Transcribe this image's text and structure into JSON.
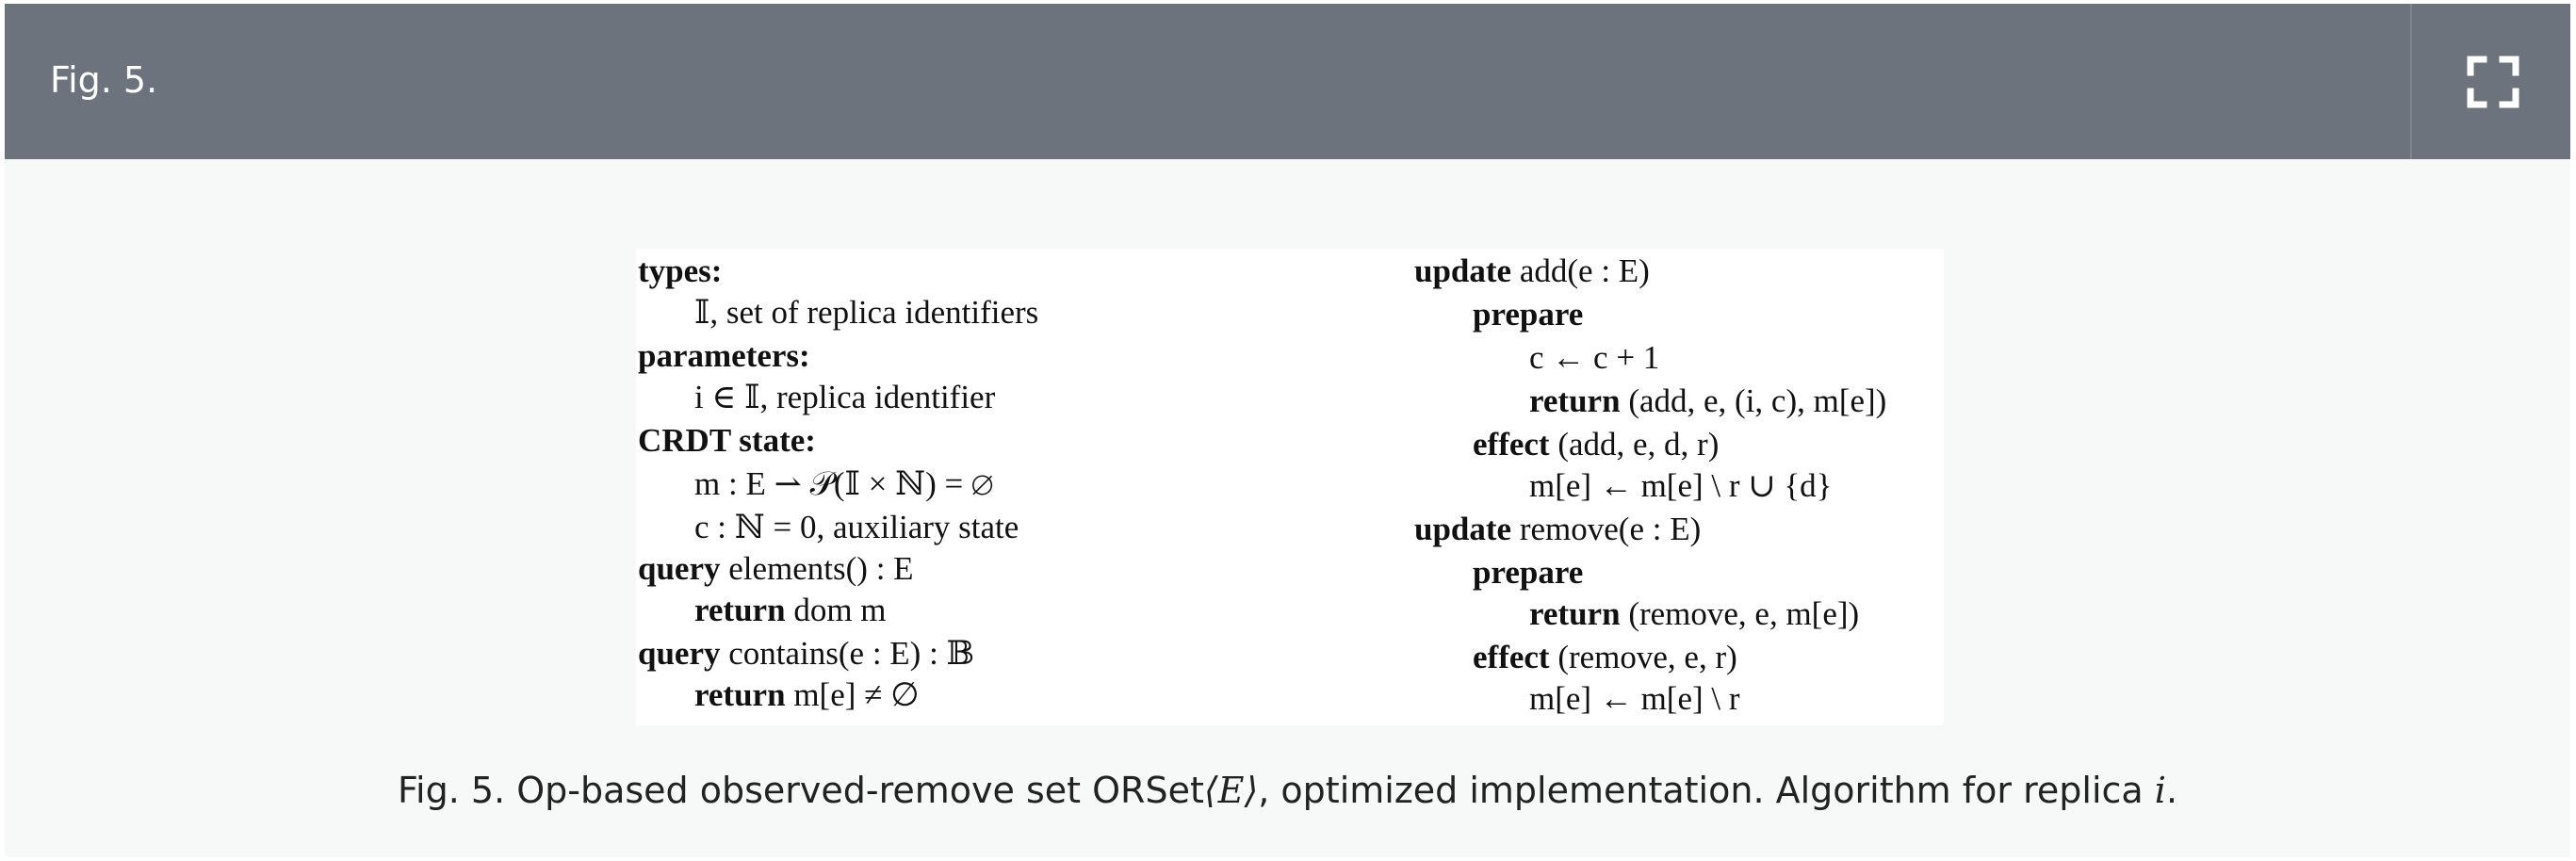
{
  "header": {
    "title": "Fig. 5.",
    "expand_icon": "fullscreen-icon"
  },
  "figure": {
    "algorithm": {
      "left_column": {
        "types_kw": "types:",
        "types_line": "𝕀, set of replica identifiers",
        "parameters_kw": "parameters:",
        "parameters_line": "i ∈ 𝕀, replica identifier",
        "state_kw": "CRDT state:",
        "state_m": "m : E ⇀ 𝒫(𝕀 × ℕ) = ∅",
        "state_c": "c : ℕ = 0, auxiliary state",
        "query1_kw": "query",
        "query1_sig": "elements() : E",
        "query1_return_kw": "return",
        "query1_return_val": "dom m",
        "query2_kw": "query",
        "query2_sig": "contains(e : E) : 𝔹",
        "query2_return_kw": "return",
        "query2_return_val": "m[e] ≠ ∅"
      },
      "right_column": {
        "update_add_kw": "update",
        "update_add_sig": "add(e : E)",
        "add_prepare_kw": "prepare",
        "add_prepare_stmt": "c ← c + 1",
        "add_return_kw": "return",
        "add_return_val": "(add, e, (i, c), m[e])",
        "add_effect_kw": "effect",
        "add_effect_sig": "(add, e, d, r)",
        "add_effect_stmt": "m[e] ← m[e] \\ r ∪ {d}",
        "update_remove_kw": "update",
        "update_remove_sig": "remove(e : E)",
        "remove_prepare_kw": "prepare",
        "remove_return_kw": "return",
        "remove_return_val": "(remove, e, m[e])",
        "remove_effect_kw": "effect",
        "remove_effect_sig": "(remove, e, r)",
        "remove_effect_stmt": "m[e] ← m[e] \\ r"
      }
    }
  },
  "caption": {
    "prefix": "Fig. 5.",
    "text_before": " Op-based observed-remove set ORSet",
    "math": "⟨E⟩",
    "text_after": ", optimized implementation. Algorithm for replica ",
    "replica": "i",
    "end": "."
  },
  "colors": {
    "header_bg": "#6c737c",
    "panel_bg": "#f7f8f8",
    "header_text": "#ffffff"
  }
}
